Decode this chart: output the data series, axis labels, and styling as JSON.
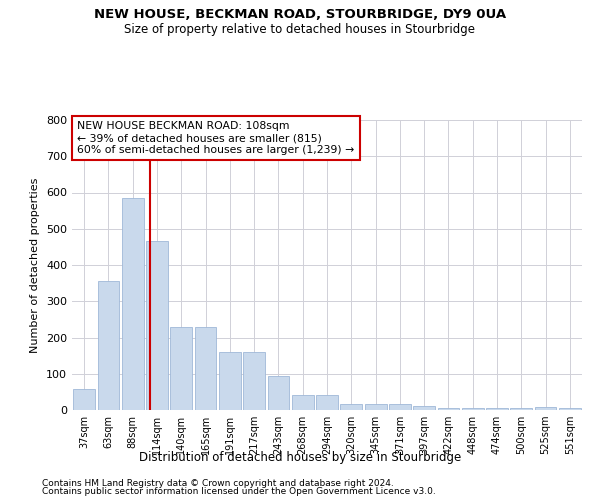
{
  "title1": "NEW HOUSE, BECKMAN ROAD, STOURBRIDGE, DY9 0UA",
  "title2": "Size of property relative to detached houses in Stourbridge",
  "xlabel": "Distribution of detached houses by size in Stourbridge",
  "ylabel": "Number of detached properties",
  "categories": [
    "37sqm",
    "63sqm",
    "88sqm",
    "114sqm",
    "140sqm",
    "165sqm",
    "191sqm",
    "217sqm",
    "243sqm",
    "268sqm",
    "294sqm",
    "320sqm",
    "345sqm",
    "371sqm",
    "397sqm",
    "422sqm",
    "448sqm",
    "474sqm",
    "500sqm",
    "525sqm",
    "551sqm"
  ],
  "values": [
    57,
    355,
    585,
    465,
    230,
    230,
    160,
    160,
    93,
    42,
    42,
    17,
    17,
    17,
    12,
    6,
    6,
    6,
    6,
    9,
    5
  ],
  "bar_color": "#c9d9ec",
  "bar_edge_color": "#a0b8d8",
  "vline_x": 2.72,
  "vline_color": "#cc0000",
  "annotation_line1": "NEW HOUSE BECKMAN ROAD: 108sqm",
  "annotation_line2": "← 39% of detached houses are smaller (815)",
  "annotation_line3": "60% of semi-detached houses are larger (1,239) →",
  "annotation_box_color": "#ffffff",
  "annotation_box_edge": "#cc0000",
  "ylim": [
    0,
    800
  ],
  "yticks": [
    0,
    100,
    200,
    300,
    400,
    500,
    600,
    700,
    800
  ],
  "footer1": "Contains HM Land Registry data © Crown copyright and database right 2024.",
  "footer2": "Contains public sector information licensed under the Open Government Licence v3.0.",
  "background_color": "#ffffff",
  "grid_color": "#d0d0d8"
}
